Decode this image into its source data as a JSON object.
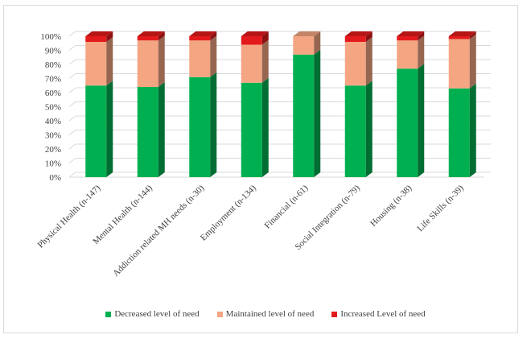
{
  "chart_data": {
    "type": "bar",
    "stacked": true,
    "style": "3d-stacked-column",
    "categories": [
      "Physical Health (n-147)",
      "Mental Health (n-144)",
      "Addiction related MH needs (n-30)",
      "Employment (n-134)",
      "Financial (n-61)",
      "Social Integration (n-79)",
      "Housing (n-38)",
      "Life Skills (n-39)"
    ],
    "series": [
      {
        "name": "Decreased level of need",
        "color": "#00b050",
        "values": [
          65,
          64,
          71,
          67,
          87,
          65,
          77,
          63
        ]
      },
      {
        "name": "Maintained level of need",
        "color": "#f4a582",
        "values": [
          31,
          33,
          26,
          27,
          13,
          31,
          20,
          35
        ]
      },
      {
        "name": "Increased Level of need",
        "color": "#e31a1c",
        "values": [
          4,
          3,
          3,
          6,
          0,
          4,
          3,
          2
        ]
      }
    ],
    "yticks": [
      "0%",
      "10%",
      "20%",
      "30%",
      "40%",
      "50%",
      "60%",
      "70%",
      "80%",
      "90%",
      "100%"
    ],
    "ylim": [
      0,
      100
    ],
    "grid": true,
    "legend_position": "bottom"
  }
}
